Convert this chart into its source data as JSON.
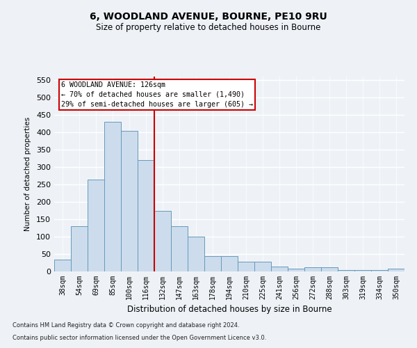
{
  "title_line1": "6, WOODLAND AVENUE, BOURNE, PE10 9RU",
  "title_line2": "Size of property relative to detached houses in Bourne",
  "xlabel": "Distribution of detached houses by size in Bourne",
  "ylabel": "Number of detached properties",
  "categories": [
    "38sqm",
    "54sqm",
    "69sqm",
    "85sqm",
    "100sqm",
    "116sqm",
    "132sqm",
    "147sqm",
    "163sqm",
    "178sqm",
    "194sqm",
    "210sqm",
    "225sqm",
    "241sqm",
    "256sqm",
    "272sqm",
    "288sqm",
    "303sqm",
    "319sqm",
    "334sqm",
    "350sqm"
  ],
  "values": [
    35,
    130,
    265,
    430,
    405,
    320,
    175,
    130,
    100,
    45,
    45,
    28,
    28,
    15,
    8,
    12,
    12,
    5,
    5,
    5,
    8
  ],
  "bar_color": "#ccdcec",
  "bar_edge_color": "#6699bb",
  "vline_x": 5.5,
  "vline_color": "#cc0000",
  "annotation_title": "6 WOODLAND AVENUE: 126sqm",
  "annotation_line1": "← 70% of detached houses are smaller (1,490)",
  "annotation_line2": "29% of semi-detached houses are larger (605) →",
  "annotation_box_color": "#cc0000",
  "ylim": [
    0,
    560
  ],
  "yticks": [
    0,
    50,
    100,
    150,
    200,
    250,
    300,
    350,
    400,
    450,
    500,
    550
  ],
  "footer_line1": "Contains HM Land Registry data © Crown copyright and database right 2024.",
  "footer_line2": "Contains public sector information licensed under the Open Government Licence v3.0.",
  "background_color": "#eef2f7",
  "plot_background_color": "#eef2f7"
}
